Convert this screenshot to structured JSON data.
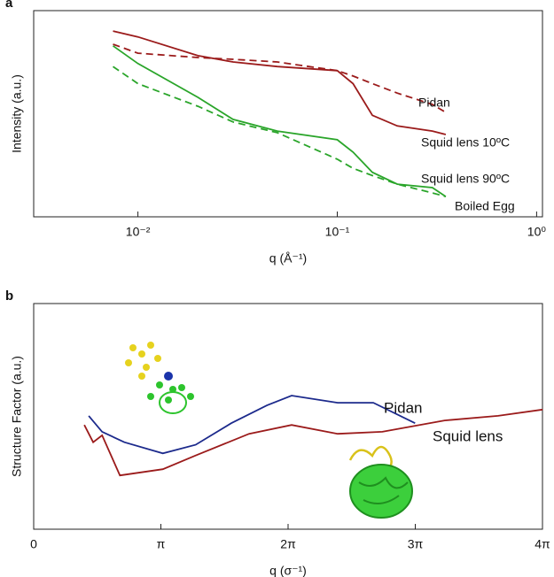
{
  "chart_data": [
    {
      "type": "line",
      "panel": "a",
      "xlabel": "q (Å⁻¹)",
      "ylabel": "Intensity (a.u.)",
      "xlog": true,
      "ylog": true,
      "xlim": [
        0.003,
        1.07
      ],
      "ylim": [
        1e-05,
        1
      ],
      "xticks": [
        {
          "value": 0.01,
          "label": "10⁻²"
        },
        {
          "value": 0.1,
          "label": "10⁻¹"
        },
        {
          "value": 1,
          "label": "10⁰"
        }
      ],
      "x": [
        0.0075,
        0.01,
        0.02,
        0.03,
        0.05,
        0.1,
        0.12,
        0.15,
        0.2,
        0.3,
        0.35
      ],
      "series": [
        {
          "name": "Pidan",
          "color": "#9b1b1b",
          "dash": true,
          "values": [
            0.153,
            0.093,
            0.073,
            0.066,
            0.057,
            0.035,
            0.026,
            0.017,
            0.01,
            0.0053,
            0.0034
          ]
        },
        {
          "name": "Squid lens 10ºC",
          "color": "#9b1b1b",
          "dash": false,
          "values": [
            0.32,
            0.23,
            0.081,
            0.057,
            0.044,
            0.035,
            0.017,
            0.0029,
            0.0016,
            0.0012,
            0.00099
          ]
        },
        {
          "name": "Squid lens 90ºC",
          "color": "#2aa52a",
          "dash": false,
          "values": [
            0.14,
            0.052,
            0.0079,
            0.0023,
            0.0012,
            0.00074,
            0.00037,
            0.00012,
            6.2e-05,
            5.1e-05,
            3.1e-05
          ]
        },
        {
          "name": "Boiled Egg",
          "color": "#2aa52a",
          "dash": true,
          "values": [
            0.044,
            0.017,
            0.0048,
            0.002,
            0.0011,
            0.00025,
            0.00015,
            0.0001,
            6.2e-05,
            3.8e-05,
            3.1e-05
          ]
        }
      ]
    },
    {
      "type": "line",
      "panel": "b",
      "xlabel": "q (σ⁻¹)",
      "ylabel": "Structure Factor (a.u.)",
      "xlog": false,
      "ylog": true,
      "xlim": [
        0,
        12.566
      ],
      "ylim": [
        0.1,
        10
      ],
      "xticks": [
        0,
        {
          "value": 3.1416,
          "label": "π"
        },
        {
          "value": 6.2832,
          "label": "2π"
        },
        {
          "value": 9.4248,
          "label": "3π"
        },
        {
          "value": 12.566,
          "label": "4π"
        }
      ],
      "series": [
        {
          "name": "Pidan",
          "color": "#1c2a8c",
          "dash": false,
          "x": [
            1.36,
            1.69,
            2.24,
            3.19,
            4.0,
            4.88,
            5.76,
            6.37,
            7.51,
            8.39,
            9.42
          ],
          "values": [
            1.01,
            0.73,
            0.59,
            0.47,
            0.56,
            0.87,
            1.25,
            1.53,
            1.32,
            1.32,
            0.87
          ]
        },
        {
          "name": "Squid lens",
          "color": "#9b1b1b",
          "dash": false,
          "x": [
            1.25,
            1.47,
            1.69,
            2.13,
            3.19,
            4.0,
            5.32,
            6.37,
            7.51,
            8.61,
            10.15,
            11.47,
            12.57
          ],
          "values": [
            0.84,
            0.59,
            0.68,
            0.3,
            0.34,
            0.45,
            0.7,
            0.84,
            0.7,
            0.73,
            0.92,
            1.01,
            1.15
          ]
        }
      ]
    }
  ]
}
